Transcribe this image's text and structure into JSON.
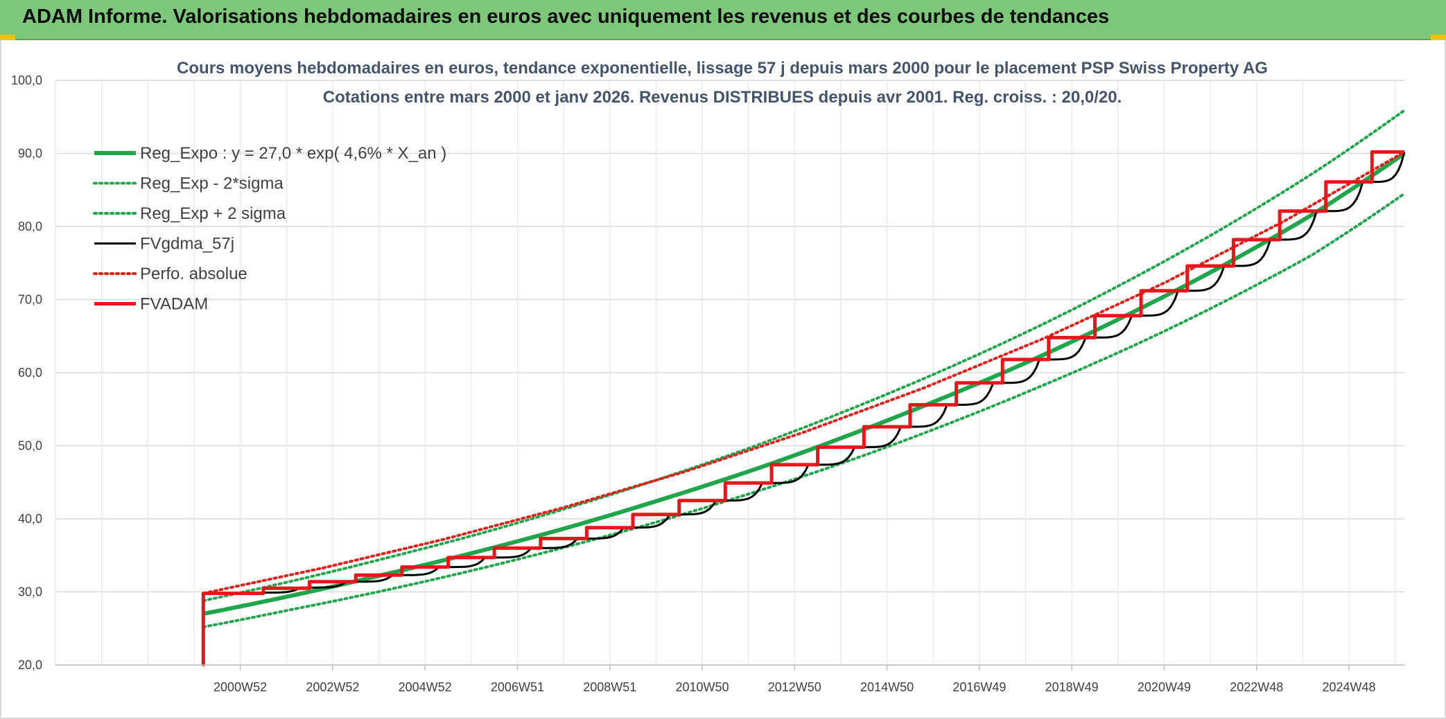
{
  "banner": {
    "title": "ADAM Informe. Valorisations hebdomadaires en euros avec uniquement les revenus et des courbes de tendances",
    "color": "#7dc77a"
  },
  "chart_data": {
    "type": "line",
    "title": "Cours moyens hebdomadaires en euros, tendance exponentielle, lissage 57 j depuis mars 2000 pour le placement PSP Swiss Property AG",
    "subtitle": "Cotations entre mars 2000 et janv 2026. Revenus DISTRIBUES depuis avr 2001. Reg. croiss. : 20,0/20.",
    "xlabel": "",
    "ylabel": "",
    "ylim": [
      20,
      100
    ],
    "yticks": [
      "20,0",
      "30,0",
      "40,0",
      "50,0",
      "60,0",
      "70,0",
      "80,0",
      "90,0",
      "100,0"
    ],
    "xlim": [
      1997.0,
      2026.2
    ],
    "xtick_labels": [
      "2000W52",
      "2002W52",
      "2004W52",
      "2006W51",
      "2008W51",
      "2010W50",
      "2012W50",
      "2014W50",
      "2016W49",
      "2018W49",
      "2020W49",
      "2022W48",
      "2024W48"
    ],
    "xtick_years": [
      2001.0,
      2003.0,
      2005.0,
      2007.0,
      2009.0,
      2011.0,
      2013.0,
      2015.0,
      2017.0,
      2019.0,
      2021.0,
      2023.0,
      2025.0
    ],
    "grid": true,
    "legend_position": "top-left",
    "series": [
      {
        "name": "Reg_Expo : y = 27,0 * exp( 4,6% *  X_an )",
        "color": "#1fa64a",
        "style": "solid-thick",
        "x": [
          2000.2,
          2002.2,
          2004.2,
          2006.2,
          2008.2,
          2010.2,
          2012.2,
          2014.2,
          2016.2,
          2018.2,
          2020.2,
          2022.2,
          2024.2,
          2026.2
        ],
        "values": [
          27.0,
          29.6,
          32.5,
          35.6,
          39.0,
          42.8,
          46.9,
          51.5,
          56.5,
          61.9,
          67.9,
          74.4,
          81.6,
          90.0
        ]
      },
      {
        "name": "Reg_Exp - 2*sigma",
        "color": "#1fa64a",
        "style": "dotted",
        "x": [
          2000.2,
          2002.2,
          2004.2,
          2006.2,
          2008.2,
          2010.2,
          2012.2,
          2014.2,
          2016.2,
          2018.2,
          2020.2,
          2022.2,
          2024.2,
          2026.2
        ],
        "values": [
          25.2,
          27.7,
          30.3,
          33.2,
          36.4,
          39.9,
          43.8,
          48.0,
          52.7,
          57.8,
          63.3,
          69.4,
          76.1,
          84.5
        ]
      },
      {
        "name": "Reg_Exp + 2 sigma",
        "color": "#1fa64a",
        "style": "dotted",
        "x": [
          2000.2,
          2002.2,
          2004.2,
          2006.2,
          2008.2,
          2010.2,
          2012.2,
          2014.2,
          2016.2,
          2018.2,
          2020.2,
          2022.2,
          2024.2,
          2026.2
        ],
        "values": [
          28.8,
          31.6,
          34.7,
          38.0,
          41.7,
          45.7,
          50.1,
          55.0,
          60.3,
          66.1,
          72.5,
          79.5,
          87.2,
          95.9
        ]
      },
      {
        "name": "FVgdma_57j",
        "color": "#000000",
        "style": "solid",
        "x": [
          2000.2,
          2000.2,
          2001.3,
          2002.3,
          2003.3,
          2004.3,
          2005.3,
          2006.3,
          2007.3,
          2008.3,
          2009.3,
          2010.3,
          2011.3,
          2012.3,
          2013.3,
          2014.3,
          2015.3,
          2016.3,
          2017.3,
          2018.3,
          2019.3,
          2020.3,
          2021.3,
          2022.3,
          2023.3,
          2024.3,
          2025.3,
          2026.2
        ],
        "values": [
          20.0,
          29.8,
          29.9,
          30.6,
          31.4,
          32.3,
          33.4,
          34.7,
          36.0,
          37.3,
          38.8,
          40.6,
          42.5,
          44.9,
          47.4,
          49.8,
          52.6,
          55.6,
          58.6,
          61.8,
          64.8,
          67.8,
          71.2,
          74.6,
          78.2,
          82.1,
          86.1,
          90.2
        ]
      },
      {
        "name": "Perfo. absolue",
        "color": "#e0201a",
        "style": "dotted",
        "x": [
          2000.2,
          2000.2,
          2026.2
        ],
        "values": [
          20.0,
          29.8,
          90.2
        ]
      },
      {
        "name": "FVADAM",
        "color": "#e8161b",
        "style": "step-thick",
        "x": [
          2000.2,
          2000.2,
          2001.5,
          2001.5,
          2002.5,
          2002.5,
          2003.5,
          2003.5,
          2004.5,
          2004.5,
          2005.5,
          2005.5,
          2006.5,
          2006.5,
          2007.5,
          2007.5,
          2008.5,
          2008.5,
          2009.5,
          2009.5,
          2010.5,
          2010.5,
          2011.5,
          2011.5,
          2012.5,
          2012.5,
          2013.5,
          2013.5,
          2014.5,
          2014.5,
          2015.5,
          2015.5,
          2016.5,
          2016.5,
          2017.5,
          2017.5,
          2018.5,
          2018.5,
          2019.5,
          2019.5,
          2020.5,
          2020.5,
          2021.5,
          2021.5,
          2022.5,
          2022.5,
          2023.5,
          2023.5,
          2024.5,
          2024.5,
          2025.5,
          2025.5,
          2026.2
        ],
        "values": [
          20.0,
          29.8,
          29.8,
          30.5,
          30.5,
          31.4,
          31.4,
          32.3,
          32.3,
          33.4,
          33.4,
          34.7,
          34.7,
          36.0,
          36.0,
          37.3,
          37.3,
          38.8,
          38.8,
          40.6,
          40.6,
          42.5,
          42.5,
          44.9,
          44.9,
          47.4,
          47.4,
          49.8,
          49.8,
          52.6,
          52.6,
          55.6,
          55.6,
          58.6,
          58.6,
          61.8,
          61.8,
          64.8,
          64.8,
          67.8,
          67.8,
          71.2,
          71.2,
          74.6,
          74.6,
          78.2,
          78.2,
          82.1,
          82.1,
          86.1,
          86.1,
          90.2,
          90.2
        ]
      }
    ]
  }
}
